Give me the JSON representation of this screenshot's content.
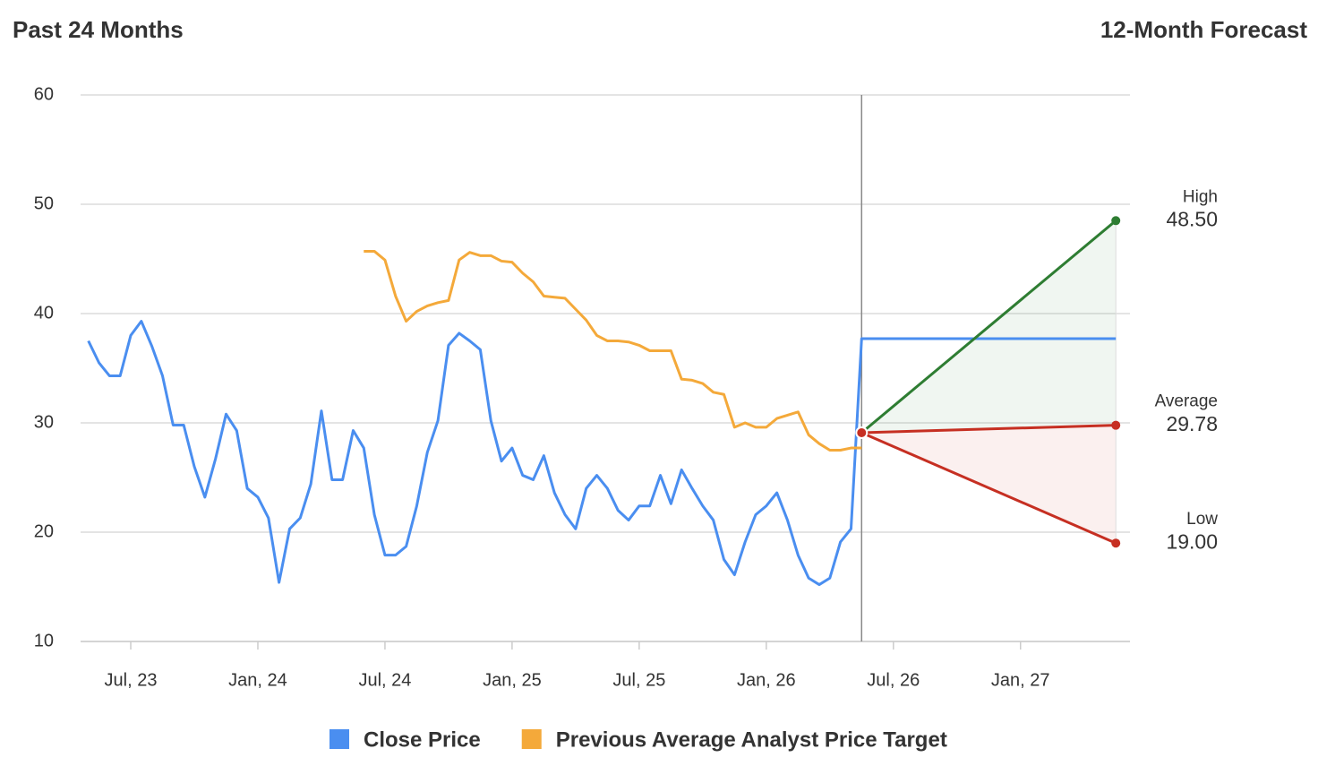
{
  "chart_data": {
    "type": "line",
    "title": "Past 24 Months",
    "forecast_title": "12-Month Forecast",
    "categories": [
      null,
      null,
      null,
      null,
      "Jul, 23",
      null,
      null,
      null,
      null,
      null,
      null,
      null,
      null,
      null,
      null,
      null,
      "Jan, 24",
      null,
      null,
      null,
      null,
      null,
      null,
      null,
      null,
      null,
      null,
      null,
      "Jul, 24",
      null,
      null,
      null,
      null,
      null,
      null,
      null,
      null,
      null,
      null,
      null,
      "Jan, 25",
      null,
      null,
      null,
      null,
      null,
      null,
      null,
      null,
      null,
      null,
      null,
      "Jul, 25",
      null,
      null,
      null,
      null,
      null,
      null,
      null,
      null,
      null,
      null,
      null,
      "Jan, 26",
      null,
      null,
      null,
      null,
      null,
      null,
      null,
      null,
      null,
      null,
      null,
      "Jul, 26",
      null,
      null,
      null,
      null,
      null,
      null,
      null,
      null,
      null,
      null,
      null,
      "Jan, 27",
      null,
      null,
      null,
      null,
      null,
      null,
      null,
      null,
      null
    ],
    "series": [
      {
        "name": "Close Price",
        "color": "#4a8ef0",
        "values": [
          37.5,
          35.5,
          34.3,
          34.3,
          38,
          39.3,
          37,
          34.3,
          29.8,
          29.8,
          26,
          23.2,
          26.7,
          30.8,
          29.3,
          24,
          23.2,
          21.3,
          15.4,
          20.3,
          21.3,
          24.4,
          31.1,
          24.8,
          24.8,
          29.3,
          27.7,
          21.6,
          17.9,
          17.9,
          18.7,
          22.4,
          27.3,
          30.2,
          37.1,
          38.2,
          37.5,
          36.7,
          30.2,
          26.5,
          27.7,
          25.2,
          24.8,
          27,
          23.6,
          21.6,
          20.3,
          24,
          25.2,
          24,
          22,
          21.1,
          22.4,
          22.4,
          25.2,
          22.6,
          25.7,
          24,
          22.4,
          21.1,
          17.5,
          16.1,
          19.1,
          21.6,
          22.4,
          23.6,
          21.1,
          17.9,
          15.8,
          15.2,
          15.8,
          19.1,
          20.3,
          37.7,
          37.7,
          37.7,
          37.7,
          37.7,
          37.7,
          37.7,
          37.7,
          37.7,
          37.7,
          37.7,
          37.7,
          37.7,
          37.7,
          37.7,
          37.7,
          37.7,
          37.7,
          37.7,
          37.7,
          37.7,
          37.7,
          37.7,
          37.7,
          37.7
        ]
      },
      {
        "name": "Previous Average Analyst Price Target",
        "color": "#f4a93a",
        "values": [
          null,
          null,
          null,
          null,
          null,
          null,
          null,
          null,
          null,
          null,
          null,
          null,
          null,
          null,
          null,
          null,
          null,
          null,
          null,
          null,
          null,
          null,
          null,
          null,
          null,
          null,
          45.7,
          45.7,
          44.9,
          41.6,
          39.3,
          40.2,
          40.7,
          41,
          41.2,
          44.9,
          45.6,
          45.3,
          45.3,
          44.8,
          44.7,
          43.7,
          42.9,
          41.6,
          41.5,
          41.4,
          40.4,
          39.4,
          38,
          37.5,
          37.5,
          37.4,
          37.1,
          36.6,
          36.6,
          36.6,
          34,
          33.9,
          33.6,
          32.8,
          32.6,
          29.6,
          30,
          29.6,
          29.6,
          30.4,
          30.7,
          31,
          28.9,
          28.1,
          27.5,
          27.5,
          27.7,
          27.7,
          null,
          null,
          null,
          null,
          null,
          null,
          null,
          null,
          null,
          null,
          null,
          null,
          null,
          null,
          null,
          null,
          null,
          null,
          null,
          null,
          null,
          null,
          null,
          null
        ]
      }
    ],
    "forecast": {
      "start": 29.1,
      "labels": [
        "High",
        "Average",
        "Low"
      ],
      "values": [
        48.5,
        29.78,
        19
      ],
      "value_labels": [
        "48.50",
        "29.78",
        "19.00"
      ],
      "colors": [
        "#2e7d32",
        "#c62f22",
        "#c62f22"
      ]
    },
    "ylim": [
      10,
      60
    ],
    "yticks": [
      10,
      20,
      30,
      40,
      50,
      60
    ],
    "grid": true
  }
}
